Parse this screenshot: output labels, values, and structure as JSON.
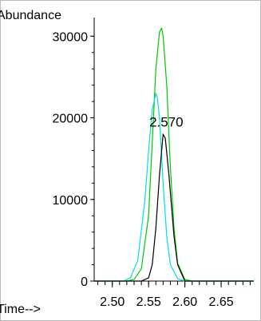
{
  "chart_data": {
    "type": "line",
    "ylabel": "Abundance",
    "xlabel": "Time-->",
    "xlim": [
      2.475,
      2.695
    ],
    "ylim": [
      0,
      31500
    ],
    "xticks": [
      2.5,
      2.55,
      2.6,
      2.65
    ],
    "xtick_labels": [
      "2.50",
      "2.55",
      "2.60",
      "2.65"
    ],
    "yticks": [
      0,
      10000,
      20000,
      30000
    ],
    "ytick_labels": [
      "0",
      "10000",
      "20000",
      "30000"
    ],
    "grid": false,
    "annotations": [
      {
        "text": "2.570",
        "x": 2.57,
        "y": 19300
      }
    ],
    "series": [
      {
        "color": "#00c800",
        "x": [
          2.52,
          2.53,
          2.54,
          2.55,
          2.555,
          2.56,
          2.565,
          2.568,
          2.57,
          2.575,
          2.58,
          2.585,
          2.59,
          2.6,
          2.61
        ],
        "y": [
          0,
          200,
          1500,
          8000,
          17000,
          26000,
          30500,
          31000,
          30000,
          24000,
          14000,
          6500,
          2200,
          200,
          0
        ]
      },
      {
        "color": "#00e0e0",
        "x": [
          2.515,
          2.525,
          2.535,
          2.545,
          2.55,
          2.555,
          2.56,
          2.562,
          2.565,
          2.57,
          2.575,
          2.58,
          2.59,
          2.6
        ],
        "y": [
          0,
          400,
          2500,
          10000,
          16000,
          21000,
          23000,
          22500,
          20000,
          12000,
          5500,
          2000,
          300,
          0
        ]
      },
      {
        "color": "#000000",
        "x": [
          2.54,
          2.55,
          2.555,
          2.56,
          2.565,
          2.57,
          2.573,
          2.578,
          2.585,
          2.59,
          2.6
        ],
        "y": [
          0,
          400,
          2000,
          6500,
          13000,
          18000,
          17500,
          13000,
          5500,
          2000,
          0
        ]
      }
    ]
  }
}
